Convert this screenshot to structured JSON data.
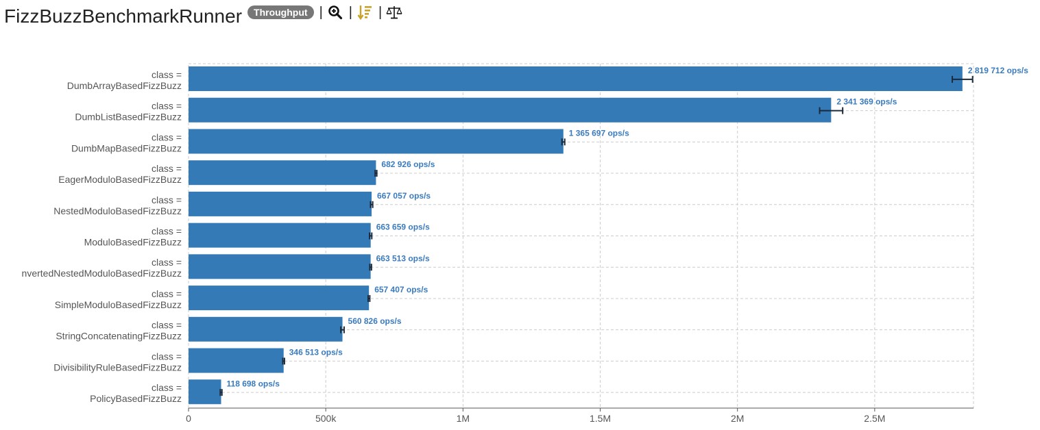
{
  "header": {
    "title": "FizzBuzzBenchmarkRunner",
    "mode_badge": "Throughput",
    "tools": [
      {
        "icon": "zoom-in-icon"
      },
      {
        "icon": "sort-descending-icon",
        "color": "#c9a227"
      },
      {
        "icon": "scale-balance-icon"
      }
    ]
  },
  "colors": {
    "bar": "#337ab7",
    "label": "#3a7bbf",
    "error_bar": "#1a2a3a",
    "grid": "#cccccc"
  },
  "chart_data": {
    "type": "bar",
    "orientation": "horizontal",
    "category_prefix": "class =",
    "categories": [
      "DumbArrayBasedFizzBuzz",
      "DumbListBasedFizzBuzz",
      "DumbMapBasedFizzBuzz",
      "EagerModuloBasedFizzBuzz",
      "NestedModuloBasedFizzBuzz",
      "ModuloBasedFizzBuzz",
      "nvertedNestedModuloBasedFizzBuzz",
      "SimpleModuloBasedFizzBuzz",
      "StringConcatenatingFizzBuzz",
      "DivisibilityRuleBasedFizzBuzz",
      "PolicyBasedFizzBuzz"
    ],
    "values": [
      2819712,
      2341369,
      1365697,
      682926,
      667057,
      663659,
      663513,
      657407,
      560826,
      346513,
      118698
    ],
    "value_labels": [
      "2 819 712 ops/s",
      "2 341 369 ops/s",
      "1 365 697 ops/s",
      "682 926 ops/s",
      "667 057 ops/s",
      "663 659 ops/s",
      "663 513 ops/s",
      "657 407 ops/s",
      "560 826 ops/s",
      "346 513 ops/s",
      "118 698 ops/s"
    ],
    "errors": [
      37000,
      42000,
      5000,
      3000,
      4000,
      4000,
      3000,
      3000,
      6000,
      3000,
      3000
    ],
    "xlim": [
      0,
      2860000
    ],
    "xticks": [
      0,
      500000,
      1000000,
      1500000,
      2000000,
      2500000
    ],
    "xtick_labels": [
      "0",
      "500k",
      "1M",
      "1.5M",
      "2M",
      "2.5M"
    ],
    "grid": true,
    "xlabel": "",
    "ylabel": ""
  }
}
